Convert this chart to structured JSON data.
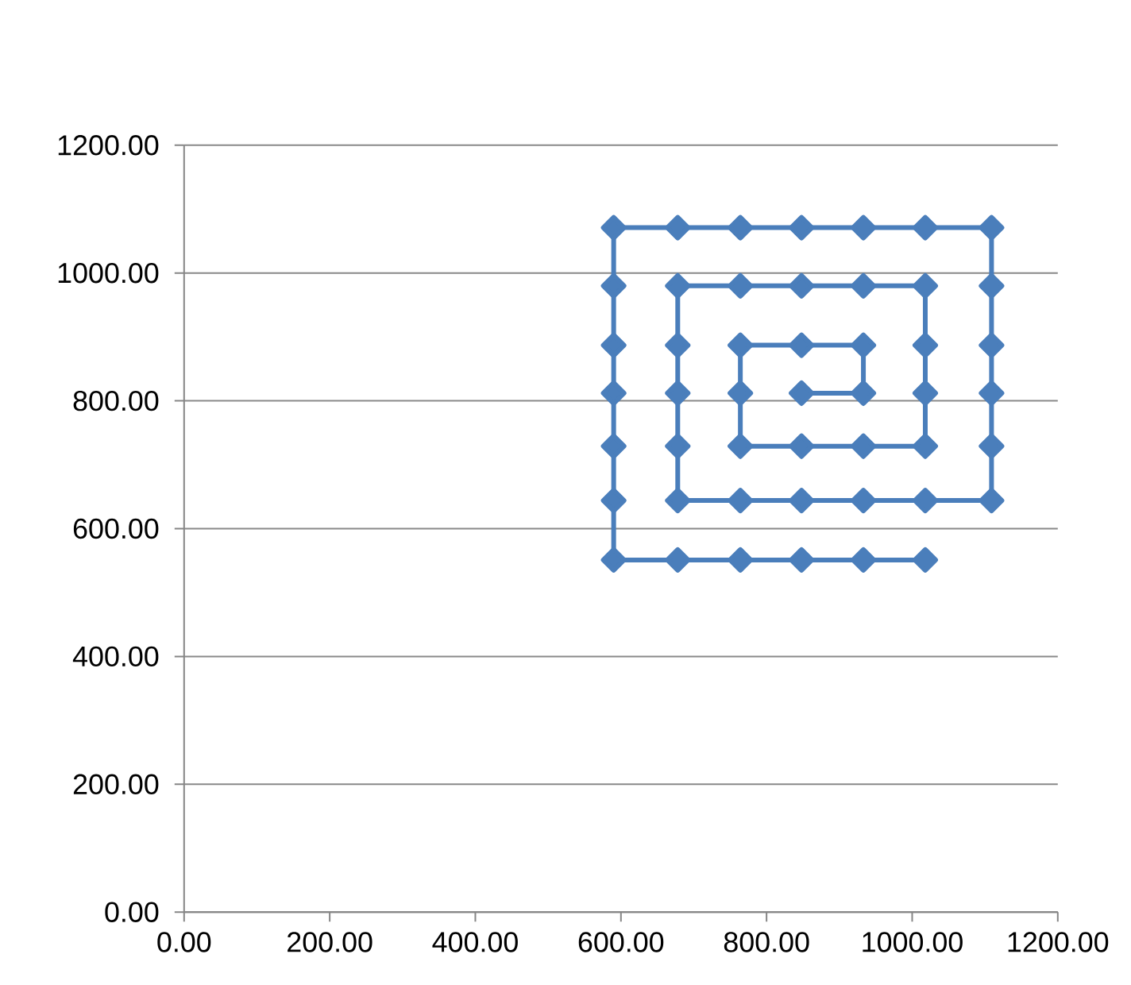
{
  "chart_data": {
    "type": "line",
    "x": [
      1018,
      933,
      848,
      764,
      678,
      590,
      590,
      590,
      590,
      590,
      590,
      590,
      678,
      764,
      848,
      933,
      1018,
      1109,
      1109,
      1109,
      1109,
      1109,
      1109,
      1018,
      933,
      848,
      764,
      678,
      678,
      678,
      678,
      678,
      764,
      848,
      933,
      1018,
      1018,
      1018,
      1018,
      933,
      848,
      764,
      764,
      764,
      848,
      933,
      933,
      848
    ],
    "series": [
      {
        "color": "#4a7ebb",
        "values": [
          551,
          551,
          551,
          551,
          551,
          551,
          644,
          729,
          812,
          887,
          980,
          1071,
          1071,
          1071,
          1071,
          1071,
          1071,
          1071,
          980,
          887,
          812,
          729,
          644,
          644,
          644,
          644,
          644,
          644,
          729,
          812,
          887,
          980,
          980,
          980,
          980,
          980,
          887,
          812,
          729,
          729,
          729,
          729,
          812,
          887,
          887,
          887,
          812,
          812
        ]
      }
    ],
    "xlim": [
      0,
      1200
    ],
    "ylim": [
      0,
      1200
    ],
    "xticks": [
      {
        "value": 0,
        "label": "0.00"
      },
      {
        "value": 200,
        "label": "200.00"
      },
      {
        "value": 400,
        "label": "400.00"
      },
      {
        "value": 600,
        "label": "600.00"
      },
      {
        "value": 800,
        "label": "800.00"
      },
      {
        "value": 1000,
        "label": "1000.00"
      },
      {
        "value": 1200,
        "label": "1200.00"
      }
    ],
    "yticks": [
      {
        "value": 0,
        "label": "0.00"
      },
      {
        "value": 200,
        "label": "200.00"
      },
      {
        "value": 400,
        "label": "400.00"
      },
      {
        "value": 600,
        "label": "600.00"
      },
      {
        "value": 800,
        "label": "800.00"
      },
      {
        "value": 1000,
        "label": "1000.00"
      },
      {
        "value": 1200,
        "label": "1200.00"
      }
    ],
    "grid": "y",
    "marker": "diamond",
    "line_style": "solid"
  }
}
